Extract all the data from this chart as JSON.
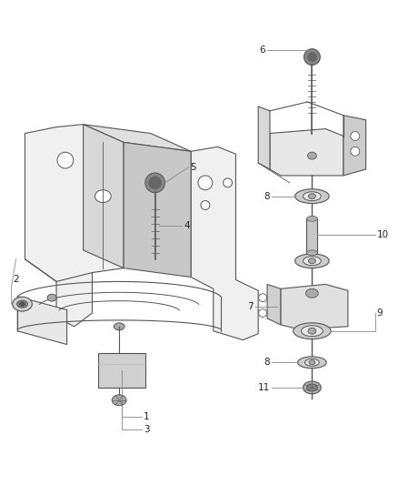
{
  "bg_color": "#ffffff",
  "line_color": "#555555",
  "fig_width": 4.38,
  "fig_height": 5.33,
  "dpi": 100,
  "label_fs": 7.5,
  "leader_color": "#888888"
}
